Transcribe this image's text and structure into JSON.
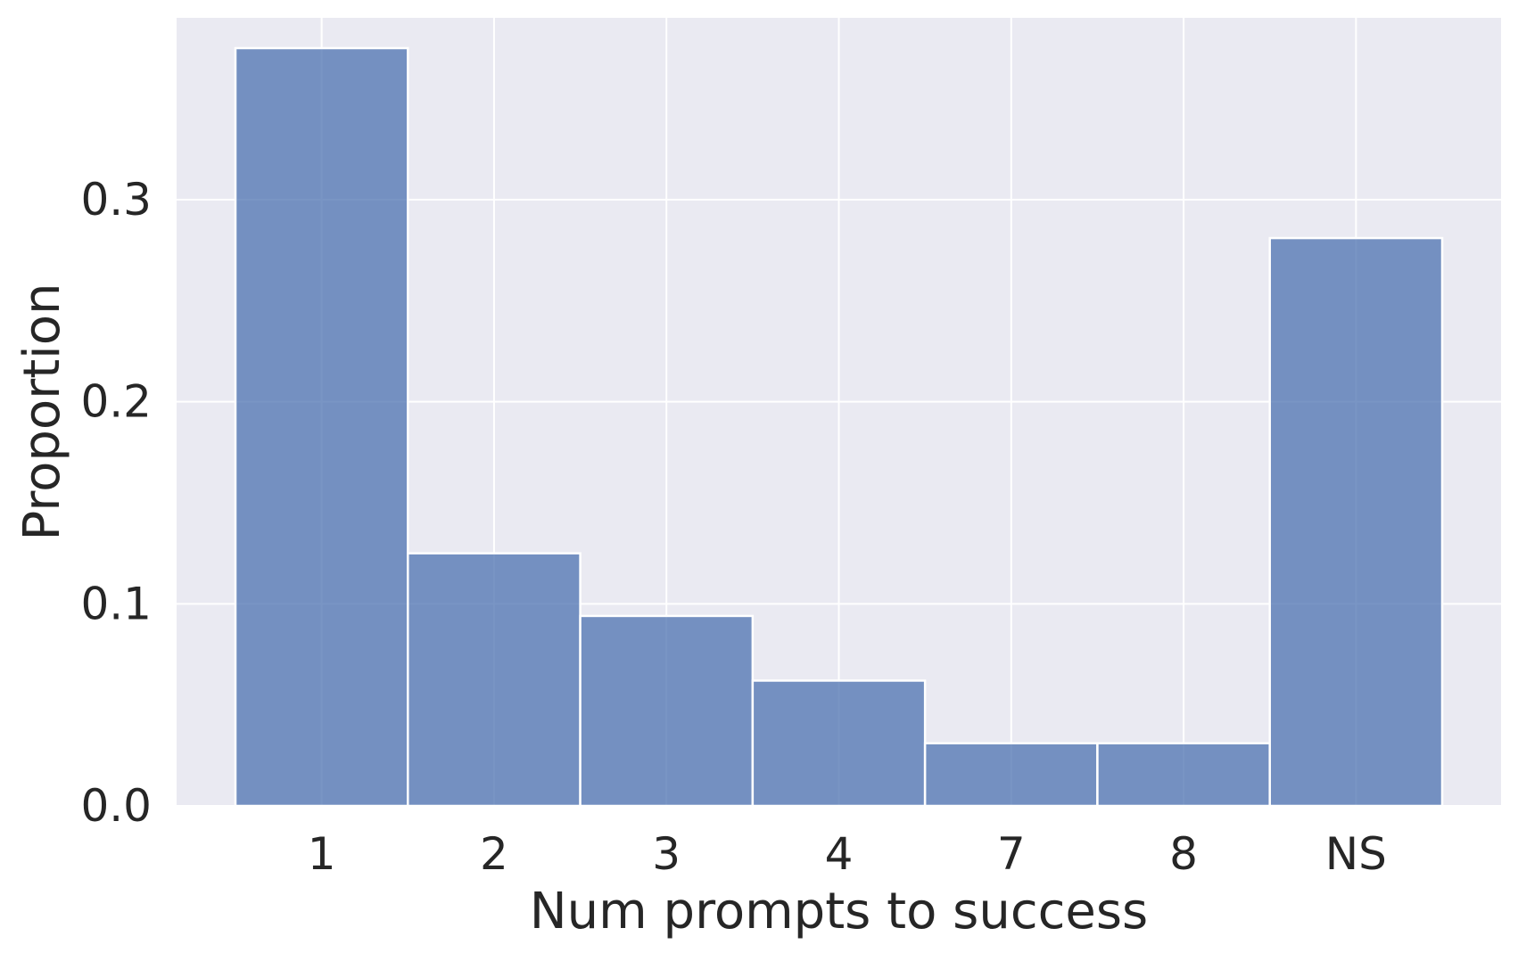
{
  "chart_data": {
    "type": "bar",
    "title": "",
    "xlabel": "Num prompts to success",
    "ylabel": "Proportion",
    "categories": [
      "1",
      "2",
      "3",
      "4",
      "7",
      "8",
      "NS"
    ],
    "values": [
      0.375,
      0.125,
      0.094,
      0.062,
      0.031,
      0.031,
      0.281
    ],
    "ylim": [
      0,
      0.39
    ],
    "yticks": [
      0.0,
      0.1,
      0.2,
      0.3
    ],
    "ytick_labels": [
      "0.0",
      "0.1",
      "0.2",
      "0.3"
    ],
    "grid": true,
    "colors": {
      "bar": "#4c72b0",
      "background": "#eaeaf2",
      "grid": "#ffffff",
      "text": "#262626"
    }
  }
}
